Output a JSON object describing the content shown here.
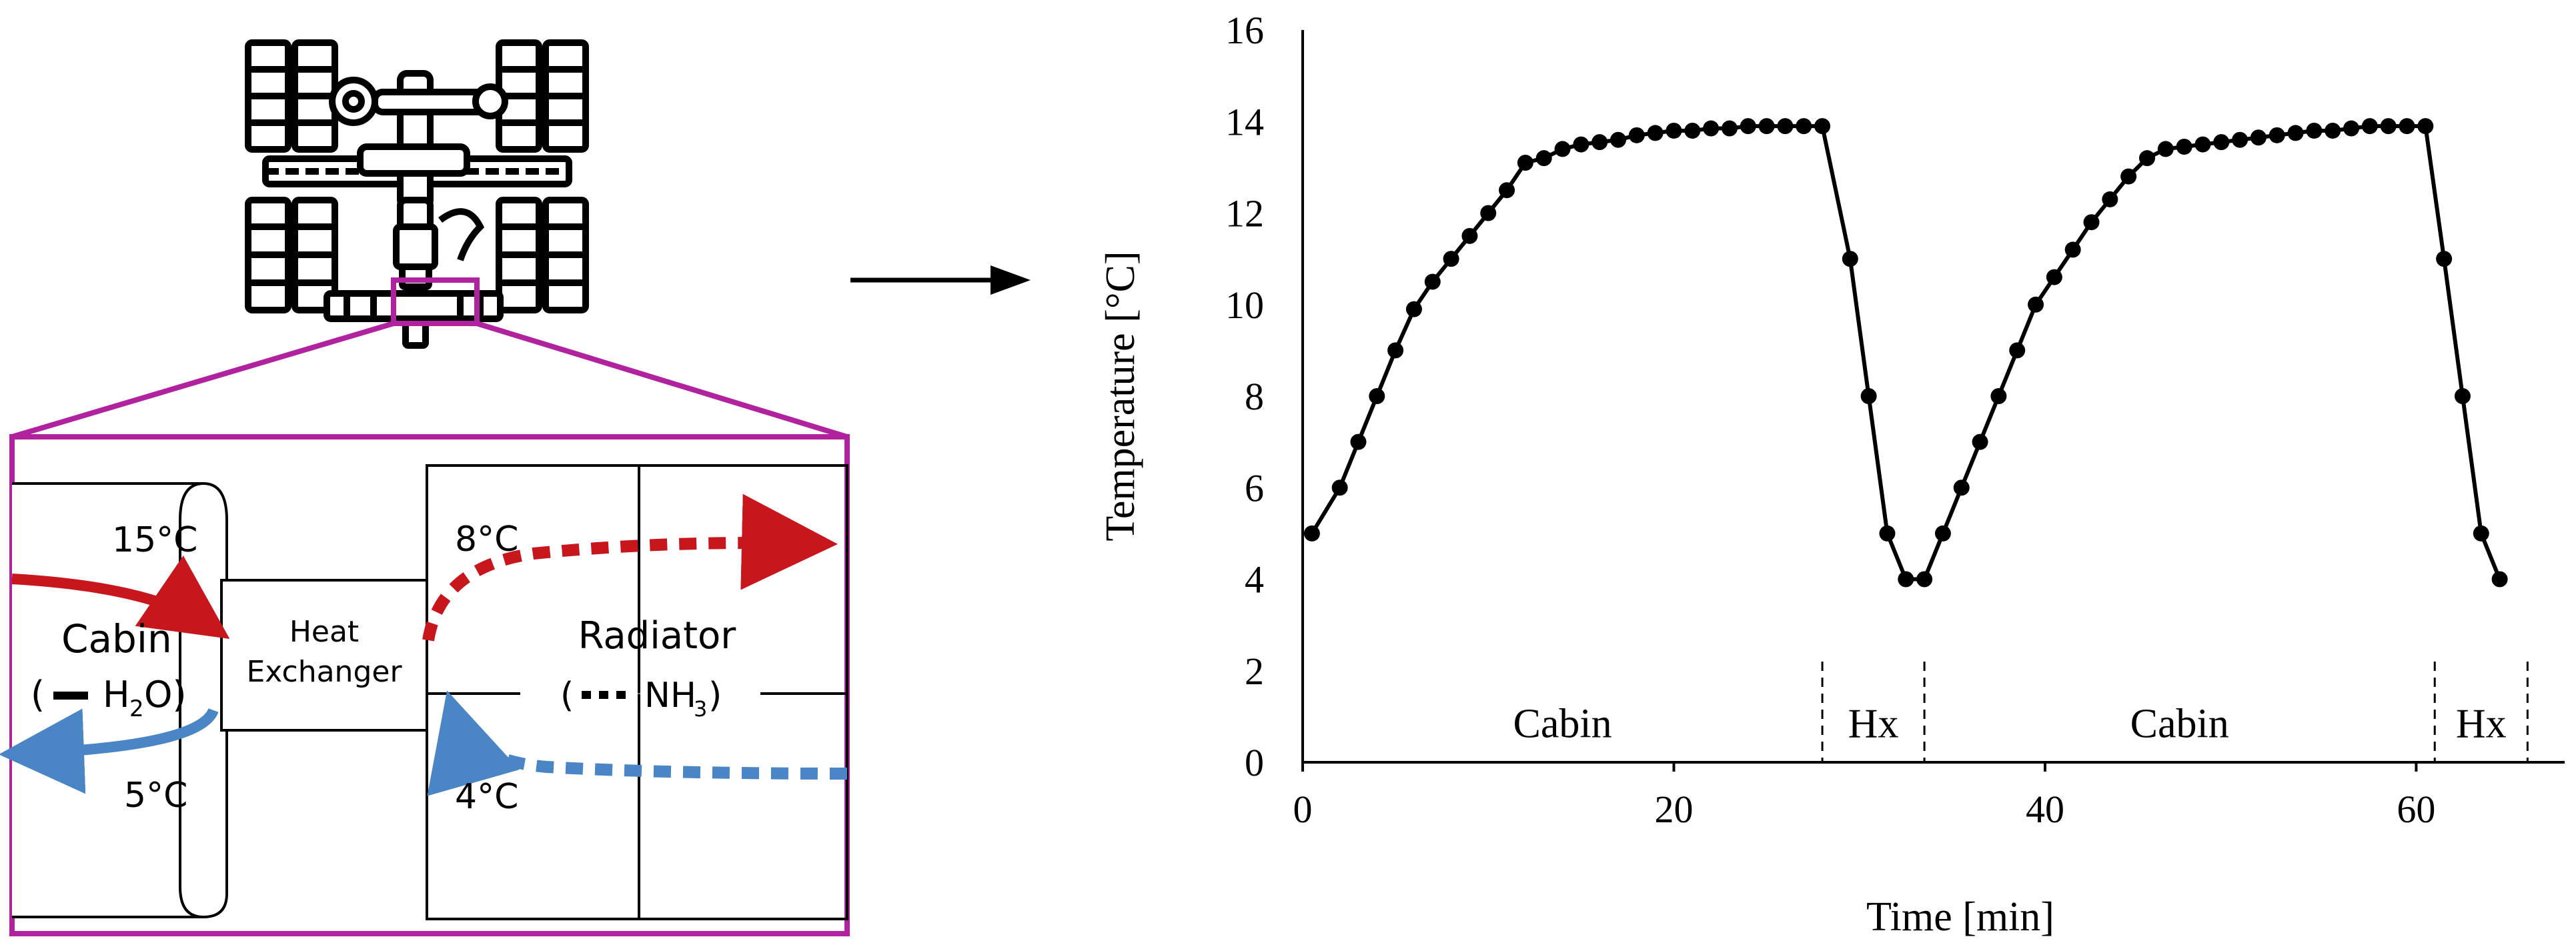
{
  "diagram": {
    "cabin_inlet_temp": "15°C",
    "cabin_outlet_temp": "5°C",
    "cabin_label": "Cabin",
    "cabin_fluid_prefix": "(",
    "cabin_fluid": "H",
    "cabin_fluid_sub": "2",
    "cabin_fluid_end": "O)",
    "hx_label_line1": "Heat",
    "hx_label_line2": "Exchanger",
    "radiator_inlet_temp": "8°C",
    "radiator_outlet_temp": "4°C",
    "radiator_label": "Radiator",
    "radiator_fluid_prefix": "(",
    "radiator_fluid": "NH",
    "radiator_fluid_sub": "3",
    "radiator_fluid_end": ")",
    "colors": {
      "hot_loop": "#c8161d",
      "cold_loop": "#4a86c5",
      "highlight": "#b1229f",
      "ink": "#000000"
    },
    "icons": [
      "space-station-icon",
      "arrow-right-icon"
    ]
  },
  "chart_data": {
    "type": "line",
    "xlabel": "Time [min]",
    "ylabel": "Temperature [°C]",
    "xlim": [
      0,
      68
    ],
    "ylim": [
      0,
      16
    ],
    "xticks": [
      0,
      20,
      40,
      60
    ],
    "yticks": [
      0,
      2,
      4,
      6,
      8,
      10,
      12,
      14,
      16
    ],
    "grid": false,
    "series": [
      {
        "x": [
          0.5,
          2,
          3,
          4,
          5,
          6,
          7,
          8,
          9,
          10,
          11,
          12,
          13,
          14,
          15,
          16,
          17,
          18,
          19,
          20,
          21,
          22,
          23,
          24,
          25,
          26,
          27,
          28,
          29.5,
          30.5,
          31.5,
          32.5,
          33.5,
          34.5,
          35.5,
          36.5,
          37.5,
          38.5,
          39.5,
          40.5,
          41.5,
          42.5,
          43.5,
          44.5,
          45.5,
          46.5,
          47.5,
          48.5,
          49.5,
          50.5,
          51.5,
          52.5,
          53.5,
          54.5,
          55.5,
          56.5,
          57.5,
          58.5,
          59.5,
          60.5,
          61.5,
          62.5,
          63.5,
          64.5
        ],
        "values": [
          5.0,
          6.0,
          7.0,
          8.0,
          9.0,
          9.9,
          10.5,
          11.0,
          11.5,
          12.0,
          12.5,
          13.1,
          13.2,
          13.4,
          13.5,
          13.55,
          13.6,
          13.7,
          13.75,
          13.8,
          13.8,
          13.85,
          13.85,
          13.9,
          13.9,
          13.9,
          13.9,
          13.9,
          11.0,
          8.0,
          5.0,
          4.0,
          4.0,
          5.0,
          6.0,
          7.0,
          8.0,
          9.0,
          10.0,
          10.6,
          11.2,
          11.8,
          12.3,
          12.8,
          13.2,
          13.4,
          13.45,
          13.5,
          13.55,
          13.6,
          13.65,
          13.7,
          13.75,
          13.8,
          13.8,
          13.85,
          13.9,
          13.9,
          13.9,
          13.9,
          11.0,
          8.0,
          5.0,
          4.0
        ]
      }
    ],
    "annotations": [
      {
        "label": "Cabin",
        "from": 0,
        "to": 28
      },
      {
        "label": "Hx",
        "from": 28,
        "to": 33.5
      },
      {
        "label": "Cabin",
        "from": 33.5,
        "to": 61
      },
      {
        "label": "Hx",
        "from": 61,
        "to": 66
      }
    ]
  }
}
